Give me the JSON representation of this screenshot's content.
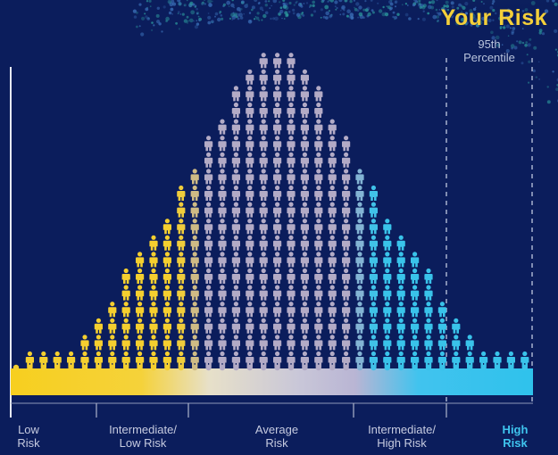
{
  "header": {
    "title": "Your Risk",
    "title_color": "#f4cf3a",
    "percentile_line1": "95th",
    "percentile_line2": "Percentile"
  },
  "colors": {
    "background": "#0b1d5c",
    "low": "#f5cf2f",
    "average": "#b3abc6",
    "high": "#39c3ea",
    "high_label": "#3fc4ee"
  },
  "chart_data": {
    "type": "pictograph-histogram",
    "icon": "person-icon",
    "x_categories": [
      {
        "line1": "Low",
        "line2": "Risk"
      },
      {
        "line1": "Intermediate/",
        "line2": "Low Risk"
      },
      {
        "line1": "Average",
        "line2": "Risk"
      },
      {
        "line1": "Intermediate/",
        "line2": "High Risk"
      },
      {
        "line1": "High",
        "line2": "Risk"
      }
    ],
    "column_counts": [
      0,
      1,
      1,
      1,
      1,
      2,
      3,
      4,
      6,
      7,
      8,
      9,
      11,
      12,
      14,
      15,
      17,
      18,
      19,
      19,
      19,
      18,
      17,
      15,
      14,
      12,
      11,
      9,
      8,
      7,
      6,
      4,
      3,
      2,
      1,
      1,
      1,
      1
    ],
    "reference_lines": [
      {
        "label": "95th Percentile",
        "position_percentile": 95
      }
    ],
    "distribution": "normal"
  }
}
